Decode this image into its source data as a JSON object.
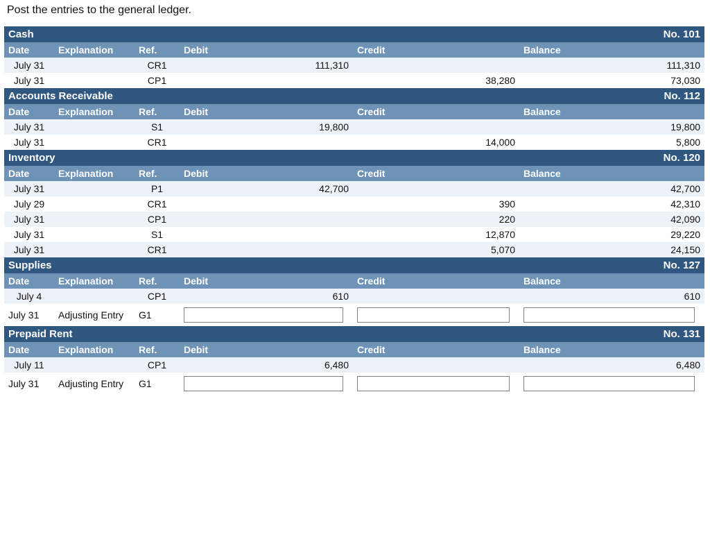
{
  "instruction": "Post the entries to the general ledger.",
  "columns": {
    "date": "Date",
    "explanation": "Explanation",
    "ref": "Ref.",
    "debit": "Debit",
    "credit": "Credit",
    "balance": "Balance"
  },
  "colors": {
    "title_bg": "#30577f",
    "header_bg": "#6e93b6",
    "row_bg": "#edf2f8",
    "row_alt_bg": "#ffffff",
    "text_light": "#ffffff"
  },
  "accounts": [
    {
      "name": "Cash",
      "number": "No. 101",
      "rows": [
        {
          "date": "July 31",
          "exp": "",
          "ref": "CR1",
          "debit": "111,310",
          "credit": "",
          "balance": "111,310",
          "alt": false
        },
        {
          "date": "July 31",
          "exp": "",
          "ref": "CP1",
          "debit": "",
          "credit": "38,280",
          "balance": "73,030",
          "alt": true
        }
      ],
      "entry": null
    },
    {
      "name": "Accounts Receivable",
      "number": "No. 112",
      "rows": [
        {
          "date": "July 31",
          "exp": "",
          "ref": "S1",
          "debit": "19,800",
          "credit": "",
          "balance": "19,800",
          "alt": false
        },
        {
          "date": "July 31",
          "exp": "",
          "ref": "CR1",
          "debit": "",
          "credit": "14,000",
          "balance": "5,800",
          "alt": true
        }
      ],
      "entry": null
    },
    {
      "name": "Inventory",
      "number": "No. 120",
      "rows": [
        {
          "date": "July 31",
          "exp": "",
          "ref": "P1",
          "debit": "42,700",
          "credit": "",
          "balance": "42,700",
          "alt": false
        },
        {
          "date": "July 29",
          "exp": "",
          "ref": "CR1",
          "debit": "",
          "credit": "390",
          "balance": "42,310",
          "alt": true
        },
        {
          "date": "July 31",
          "exp": "",
          "ref": "CP1",
          "debit": "",
          "credit": "220",
          "balance": "42,090",
          "alt": false
        },
        {
          "date": "July 31",
          "exp": "",
          "ref": "S1",
          "debit": "",
          "credit": "12,870",
          "balance": "29,220",
          "alt": true
        },
        {
          "date": "July 31",
          "exp": "",
          "ref": "CR1",
          "debit": "",
          "credit": "5,070",
          "balance": "24,150",
          "alt": false
        }
      ],
      "entry": null
    },
    {
      "name": "Supplies",
      "number": "No. 127",
      "rows": [
        {
          "date": "July 4",
          "exp": "",
          "ref": "CP1",
          "debit": "610",
          "credit": "",
          "balance": "610",
          "alt": false
        }
      ],
      "entry": {
        "date": "July 31",
        "exp": "Adjusting Entry",
        "ref": "G1",
        "debit": "",
        "credit": "",
        "balance": ""
      }
    },
    {
      "name": "Prepaid Rent",
      "number": "No. 131",
      "rows": [
        {
          "date": "July 11",
          "exp": "",
          "ref": "CP1",
          "debit": "6,480",
          "credit": "",
          "balance": "6,480",
          "alt": false
        }
      ],
      "entry": {
        "date": "July 31",
        "exp": "Adjusting Entry",
        "ref": "G1",
        "debit": "",
        "credit": "",
        "balance": ""
      }
    }
  ]
}
